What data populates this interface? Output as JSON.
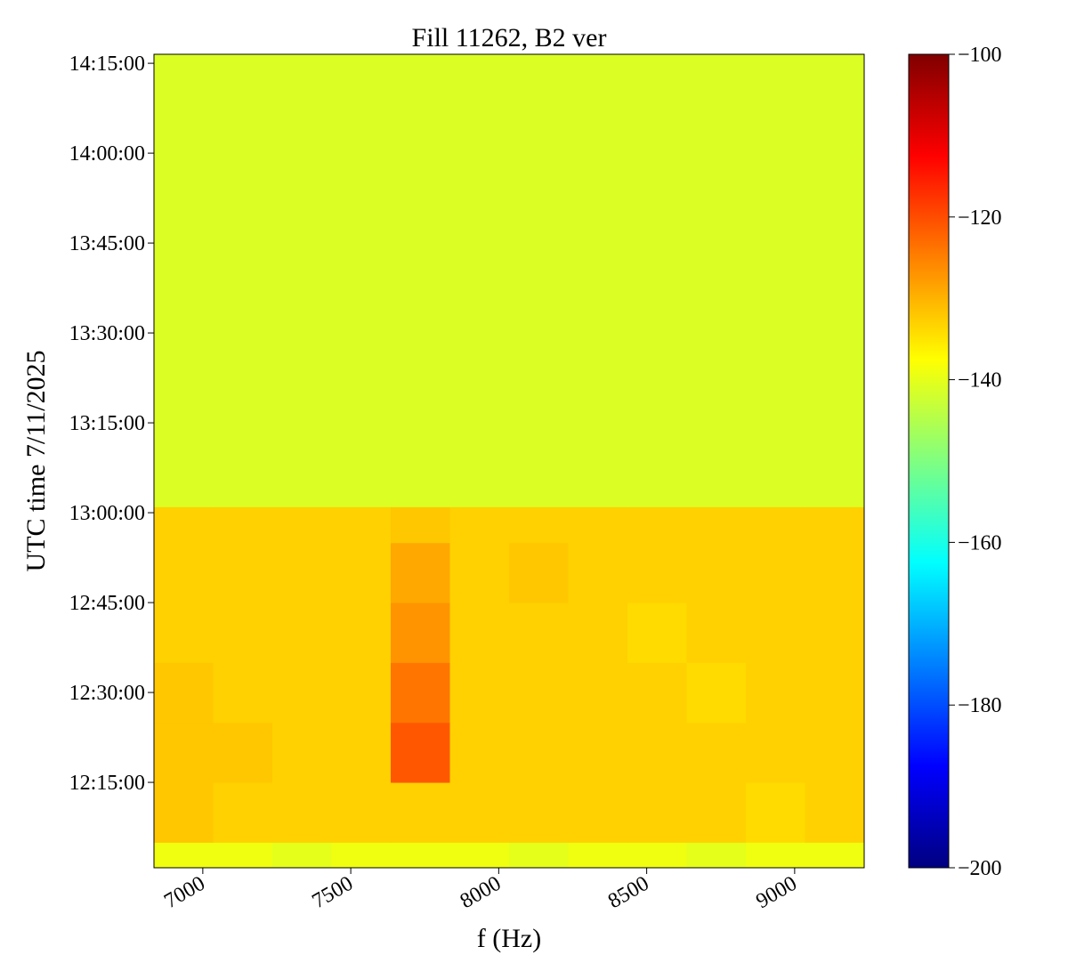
{
  "chart_data": {
    "type": "heatmap",
    "title": "Fill 11262, B2 ver",
    "xlabel": "f (Hz)",
    "ylabel": "UTC time 7/11/2025",
    "colormap": "jet",
    "xlim": [
      6835,
      9235
    ],
    "xticks": [
      7000,
      7500,
      8000,
      8500,
      9000
    ],
    "ylim": [
      "12:00:45",
      "14:16:30"
    ],
    "yticks": [
      "12:15:00",
      "12:30:00",
      "12:45:00",
      "13:00:00",
      "13:15:00",
      "13:30:00",
      "13:45:00",
      "14:00:00",
      "14:15:00"
    ],
    "clim": [
      -200,
      -100
    ],
    "cticks": [
      -200,
      -180,
      -160,
      -140,
      -120,
      -100
    ],
    "xbins": [
      6835,
      7035,
      7235,
      7435,
      7635,
      7835,
      8035,
      8235,
      8435,
      8635,
      8835,
      9035,
      9235
    ],
    "ybins": [
      "12:00:45",
      "12:05:00",
      "12:15:00",
      "12:25:00",
      "12:35:00",
      "12:45:00",
      "12:55:00",
      "13:01:00",
      "13:15:00",
      "13:30:00",
      "13:45:00",
      "14:00:00",
      "14:16:30"
    ],
    "z": [
      [
        -139,
        -139,
        -140,
        -139,
        -139,
        -139,
        -140,
        -139,
        -139,
        -140,
        -139,
        -139
      ],
      [
        -132,
        -133,
        -133,
        -133,
        -133,
        -133,
        -133,
        -133,
        -133,
        -133,
        -134,
        -133
      ],
      [
        -132,
        -132,
        -133,
        -133,
        -121,
        -133,
        -133,
        -133,
        -133,
        -133,
        -133,
        -133
      ],
      [
        -132,
        -133,
        -133,
        -133,
        -124,
        -133,
        -133,
        -133,
        -133,
        -134,
        -133,
        -133
      ],
      [
        -133,
        -133,
        -133,
        -133,
        -127,
        -133,
        -133,
        -133,
        -134,
        -133,
        -133,
        -133
      ],
      [
        -133,
        -133,
        -133,
        -133,
        -129,
        -133,
        -132,
        -133,
        -133,
        -133,
        -133,
        -133
      ],
      [
        -133,
        -133,
        -133,
        -133,
        -132,
        -133,
        -133,
        -133,
        -133,
        -133,
        -133,
        -133
      ],
      [
        -141,
        -141,
        -141,
        -141,
        -141,
        -141,
        -141,
        -141,
        -141,
        -141,
        -141,
        -141
      ],
      [
        -141,
        -141,
        -141,
        -141,
        -141,
        -141,
        -141,
        -141,
        -141,
        -141,
        -141,
        -141
      ],
      [
        -141,
        -141,
        -141,
        -141,
        -141,
        -141,
        -141,
        -141,
        -141,
        -141,
        -141,
        -141
      ],
      [
        -141,
        -141,
        -141,
        -141,
        -141,
        -141,
        -141,
        -141,
        -141,
        -141,
        -141,
        -141
      ],
      [
        -141,
        -141,
        -141,
        -141,
        -141,
        -141,
        -141,
        -141,
        -141,
        -141,
        -141,
        -141
      ]
    ]
  }
}
